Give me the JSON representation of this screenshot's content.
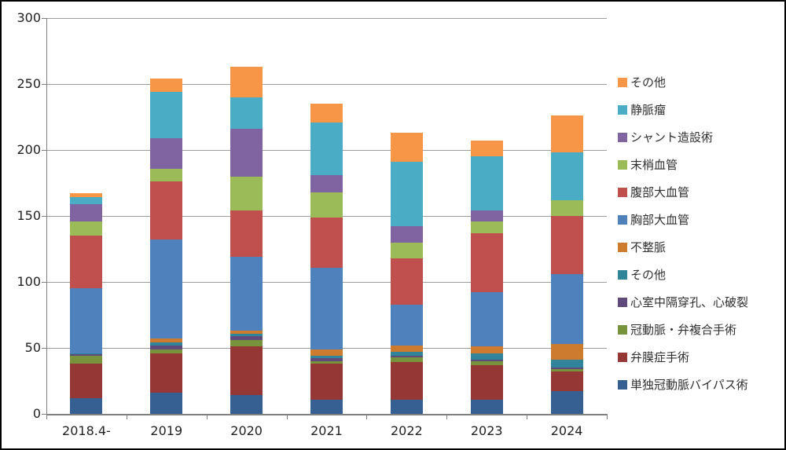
{
  "chart_data": {
    "type": "bar",
    "stacked": true,
    "title": "",
    "xlabel": "",
    "ylabel": "",
    "ylim": [
      0,
      300
    ],
    "y_tick_step": 50,
    "y_tick_labels": [
      "300",
      "250",
      "200",
      "150",
      "100",
      "50",
      "0"
    ],
    "grid": true,
    "legend_position": "right",
    "categories": [
      "2018.4-",
      "2019",
      "2020",
      "2021",
      "2022",
      "2023",
      "2024"
    ],
    "series": [
      {
        "name": "単独冠動脈バイパス術",
        "color": "#366092",
        "values": [
          12,
          16,
          14,
          11,
          11,
          11,
          17
        ]
      },
      {
        "name": "弁膜症手術",
        "color": "#943735",
        "values": [
          26,
          30,
          37,
          27,
          28,
          26,
          15
        ]
      },
      {
        "name": "冠動脈・弁複合手術",
        "color": "#77933C",
        "values": [
          6,
          3,
          5,
          2,
          4,
          3,
          2
        ]
      },
      {
        "name": "心室中隔穿孔、心破裂",
        "color": "#604A7B",
        "values": [
          1,
          3,
          3,
          2,
          1,
          1,
          1
        ]
      },
      {
        "name": "その他",
        "color": "#31859B",
        "values": [
          1,
          2,
          2,
          2,
          3,
          5,
          6
        ]
      },
      {
        "name": "不整脈",
        "color": "#CC7B2F",
        "values": [
          0,
          3,
          2,
          5,
          5,
          5,
          12
        ]
      },
      {
        "name": "胸部大血管",
        "color": "#4F81BD",
        "values": [
          49,
          75,
          56,
          62,
          31,
          41,
          53
        ]
      },
      {
        "name": "腹部大血管",
        "color": "#C0504D",
        "values": [
          40,
          44,
          35,
          38,
          35,
          45,
          44
        ]
      },
      {
        "name": "末梢血管",
        "color": "#9BBB59",
        "values": [
          11,
          10,
          26,
          19,
          12,
          9,
          12
        ]
      },
      {
        "name": "シャント造設術",
        "color": "#8064A2",
        "values": [
          13,
          23,
          36,
          13,
          12,
          8,
          0
        ]
      },
      {
        "name": "静脈瘤",
        "color": "#4BACC6",
        "values": [
          5,
          35,
          24,
          40,
          49,
          41,
          36
        ]
      },
      {
        "name": "その他",
        "color": "#F79646",
        "values": [
          3,
          10,
          23,
          14,
          22,
          12,
          28
        ]
      }
    ],
    "totals": [
      167,
      254,
      263,
      235,
      213,
      207,
      226
    ]
  },
  "colors": {
    "gridline": "#9d9d9d",
    "axis": "#7f7f7f",
    "text": "#222222",
    "frame_border": "#000000"
  }
}
